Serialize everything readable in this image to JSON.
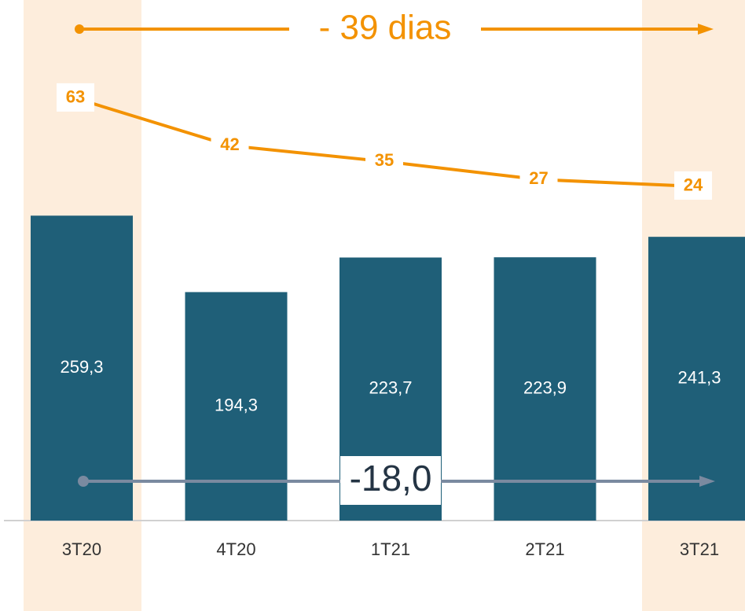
{
  "chart_data": {
    "type": "bar",
    "categories": [
      "3T20",
      "4T20",
      "1T21",
      "2T21",
      "3T21"
    ],
    "series": [
      {
        "color": "#1f5f78",
        "values": [
          259.3,
          194.3,
          223.7,
          223.9,
          241.3
        ],
        "value_labels": [
          "259,3",
          "194,3",
          "223,7",
          "223,9",
          "241,3"
        ]
      },
      {
        "type": "line",
        "axis": "y2",
        "color": "#f39200",
        "values": [
          63,
          42,
          35,
          27,
          24
        ]
      }
    ],
    "ylim": [
      0,
      436
    ],
    "y2lim": [
      -124,
      103
    ],
    "annotations": [
      "- 39 dias",
      "-18,0"
    ]
  }
}
